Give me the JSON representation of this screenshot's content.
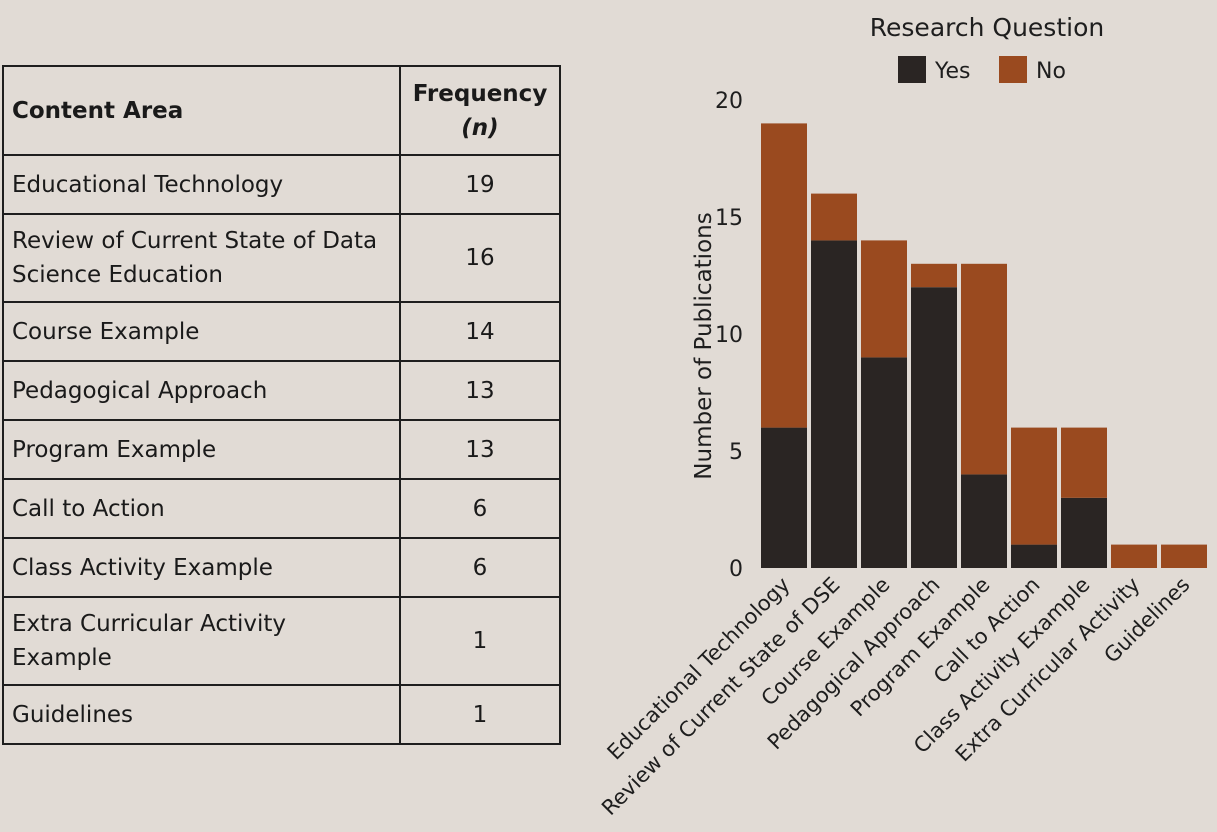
{
  "table": {
    "headers": {
      "area": "Content Area",
      "freq": "Frequency",
      "freq_symbol": "(n)"
    },
    "rows": [
      {
        "area": "Educational Technology",
        "n": "19"
      },
      {
        "area": "Review of Current State of Data Science Education",
        "n": "16"
      },
      {
        "area": "Course Example",
        "n": "14"
      },
      {
        "area": "Pedagogical Approach",
        "n": "13"
      },
      {
        "area": "Program Example",
        "n": "13"
      },
      {
        "area": "Call to Action",
        "n": "6"
      },
      {
        "area": "Class Activity Example",
        "n": "6"
      },
      {
        "area": "Extra Curricular Activity Example",
        "n": "1"
      },
      {
        "area": "Guidelines",
        "n": "1"
      }
    ]
  },
  "chart_data": {
    "type": "bar",
    "stacked": true,
    "title": "",
    "legend_title": "Research Question",
    "legend_placement": "top",
    "xlabel": "",
    "ylabel": "Number of Publications",
    "ylim": [
      0,
      20
    ],
    "yticks": [
      0,
      5,
      10,
      15,
      20
    ],
    "categories": [
      "Educational Technology",
      "Review of Current State of DSE",
      "Course Example",
      "Pedagogical Approach",
      "Program Example",
      "Call to Action",
      "Class Activity Example",
      "Extra Curricular Activity",
      "Guidelines"
    ],
    "series": [
      {
        "name": "Yes",
        "color": "#2a2523",
        "values": [
          6,
          14,
          9,
          12,
          4,
          1,
          3,
          0,
          0
        ]
      },
      {
        "name": "No",
        "color": "#9a4a1f",
        "values": [
          13,
          2,
          5,
          1,
          9,
          5,
          3,
          1,
          1
        ]
      }
    ]
  }
}
